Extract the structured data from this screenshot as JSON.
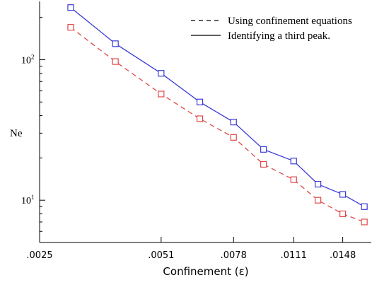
{
  "chart_data": {
    "type": "line",
    "xlabel": "Confinement (ε)",
    "ylabel": "Ne",
    "xscale": "log",
    "yscale": "log",
    "xlim": [
      0.0025,
      0.0175
    ],
    "ylim": [
      5,
      260
    ],
    "x_ticks": [
      {
        "value": 0.0025,
        "label": ".0025"
      },
      {
        "value": 0.0051,
        "label": ".0051"
      },
      {
        "value": 0.0078,
        "label": ".0078"
      },
      {
        "value": 0.0111,
        "label": ".0111"
      },
      {
        "value": 0.0148,
        "label": ".0148"
      }
    ],
    "y_ticks": [
      {
        "value": 10,
        "base": "10",
        "exp": "1"
      },
      {
        "value": 100,
        "base": "10",
        "exp": "2"
      }
    ],
    "x": [
      0.003,
      0.0039,
      0.0051,
      0.0064,
      0.0078,
      0.0093,
      0.0111,
      0.0128,
      0.0148,
      0.0168
    ],
    "series": [
      {
        "name": "Identifying a third peak.",
        "color": "#3b3bd6",
        "line_style": "solid",
        "values": [
          235,
          130,
          80,
          50,
          36,
          23,
          19,
          13,
          11,
          9
        ]
      },
      {
        "name": "Using confinement equations",
        "color": "#e04848",
        "line_style": "dashed",
        "values": [
          170,
          97,
          57,
          38,
          28,
          18,
          14,
          10,
          8,
          7
        ]
      }
    ],
    "legend": {
      "placement": "top-right",
      "entries": [
        {
          "label": "Using confinement equations",
          "style": "dashed"
        },
        {
          "label": "Identifying a third peak.",
          "style": "solid"
        }
      ]
    },
    "grid": false
  }
}
